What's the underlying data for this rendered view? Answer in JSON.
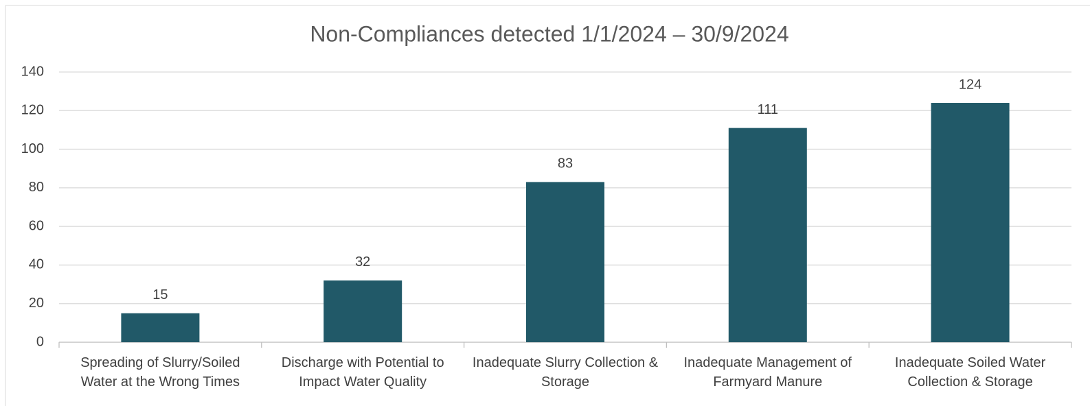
{
  "chart_data": {
    "type": "bar",
    "title": "Non-Compliances detected 1/1/2024 – 30/9/2024",
    "categories": [
      "Spreading of Slurry/Soiled Water at the Wrong Times",
      "Discharge with Potential to Impact Water Quality",
      "Inadequate Slurry Collection & Storage",
      "Inadequate Management of Farmyard Manure",
      "Inadequate Soiled Water Collection & Storage"
    ],
    "values": [
      15,
      32,
      83,
      111,
      124
    ],
    "color": "#215968",
    "ylim": [
      0,
      140
    ],
    "yticks": [
      0,
      20,
      40,
      60,
      80,
      100,
      120,
      140
    ],
    "grid": true
  }
}
